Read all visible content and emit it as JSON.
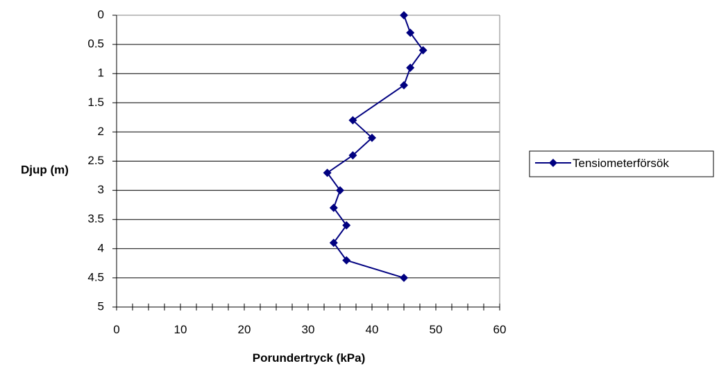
{
  "chart_data": {
    "type": "line",
    "title": "",
    "xlabel": "Porundertryck (kPa)",
    "ylabel": "Djup (m)",
    "xlim": [
      0,
      60
    ],
    "ylim": [
      0,
      5
    ],
    "y_inverted": true,
    "x_ticks": [
      "0",
      "10",
      "20",
      "30",
      "40",
      "50",
      "60"
    ],
    "y_ticks": [
      "0",
      "0.5",
      "1",
      "1.5",
      "2",
      "2.5",
      "3",
      "3.5",
      "4",
      "4.5",
      "5"
    ],
    "grid": "horizontal",
    "legend_position": "right",
    "series": [
      {
        "name": "Tensiometerförsök",
        "color": "#000080",
        "marker": "diamond",
        "x": [
          45,
          46,
          48,
          46,
          45,
          37,
          40,
          37,
          33,
          35,
          34,
          36,
          34,
          36,
          45
        ],
        "y": [
          0,
          0.3,
          0.6,
          0.9,
          1.2,
          1.8,
          2.1,
          2.4,
          2.7,
          3.0,
          3.3,
          3.6,
          3.9,
          4.2,
          4.5
        ]
      }
    ]
  }
}
